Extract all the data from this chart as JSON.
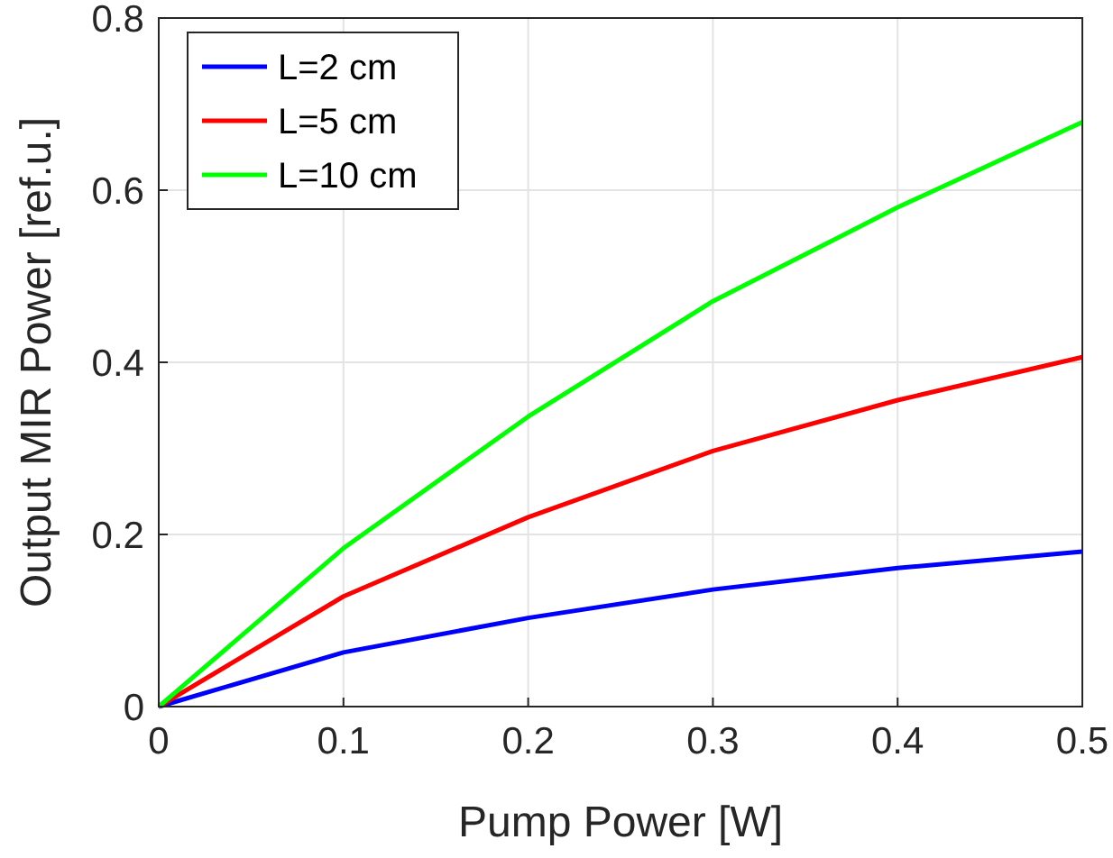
{
  "chart_data": {
    "type": "line",
    "xlabel": "Pump Power [W]",
    "ylabel": "Output MIR Power [ref.u.]",
    "x": [
      0,
      0.1,
      0.2,
      0.3,
      0.4,
      0.5
    ],
    "series": [
      {
        "name": "L=2 cm",
        "color": "#0000ff",
        "values": [
          0,
          0.063,
          0.103,
          0.136,
          0.161,
          0.18
        ]
      },
      {
        "name": "L=5 cm",
        "color": "#ff0000",
        "values": [
          0,
          0.128,
          0.22,
          0.297,
          0.356,
          0.406
        ]
      },
      {
        "name": "L=10 cm",
        "color": "#00ff00",
        "values": [
          0,
          0.184,
          0.337,
          0.471,
          0.58,
          0.679
        ]
      }
    ],
    "xlim": [
      0,
      0.5
    ],
    "xticks": [
      0,
      0.1,
      0.2,
      0.3,
      0.4,
      0.5
    ],
    "ylim": [
      0,
      0.8
    ],
    "yticks": [
      0,
      0.2,
      0.4,
      0.6,
      0.8
    ],
    "grid": true,
    "legend": "top left",
    "line_style": "solid",
    "marker": "none"
  }
}
